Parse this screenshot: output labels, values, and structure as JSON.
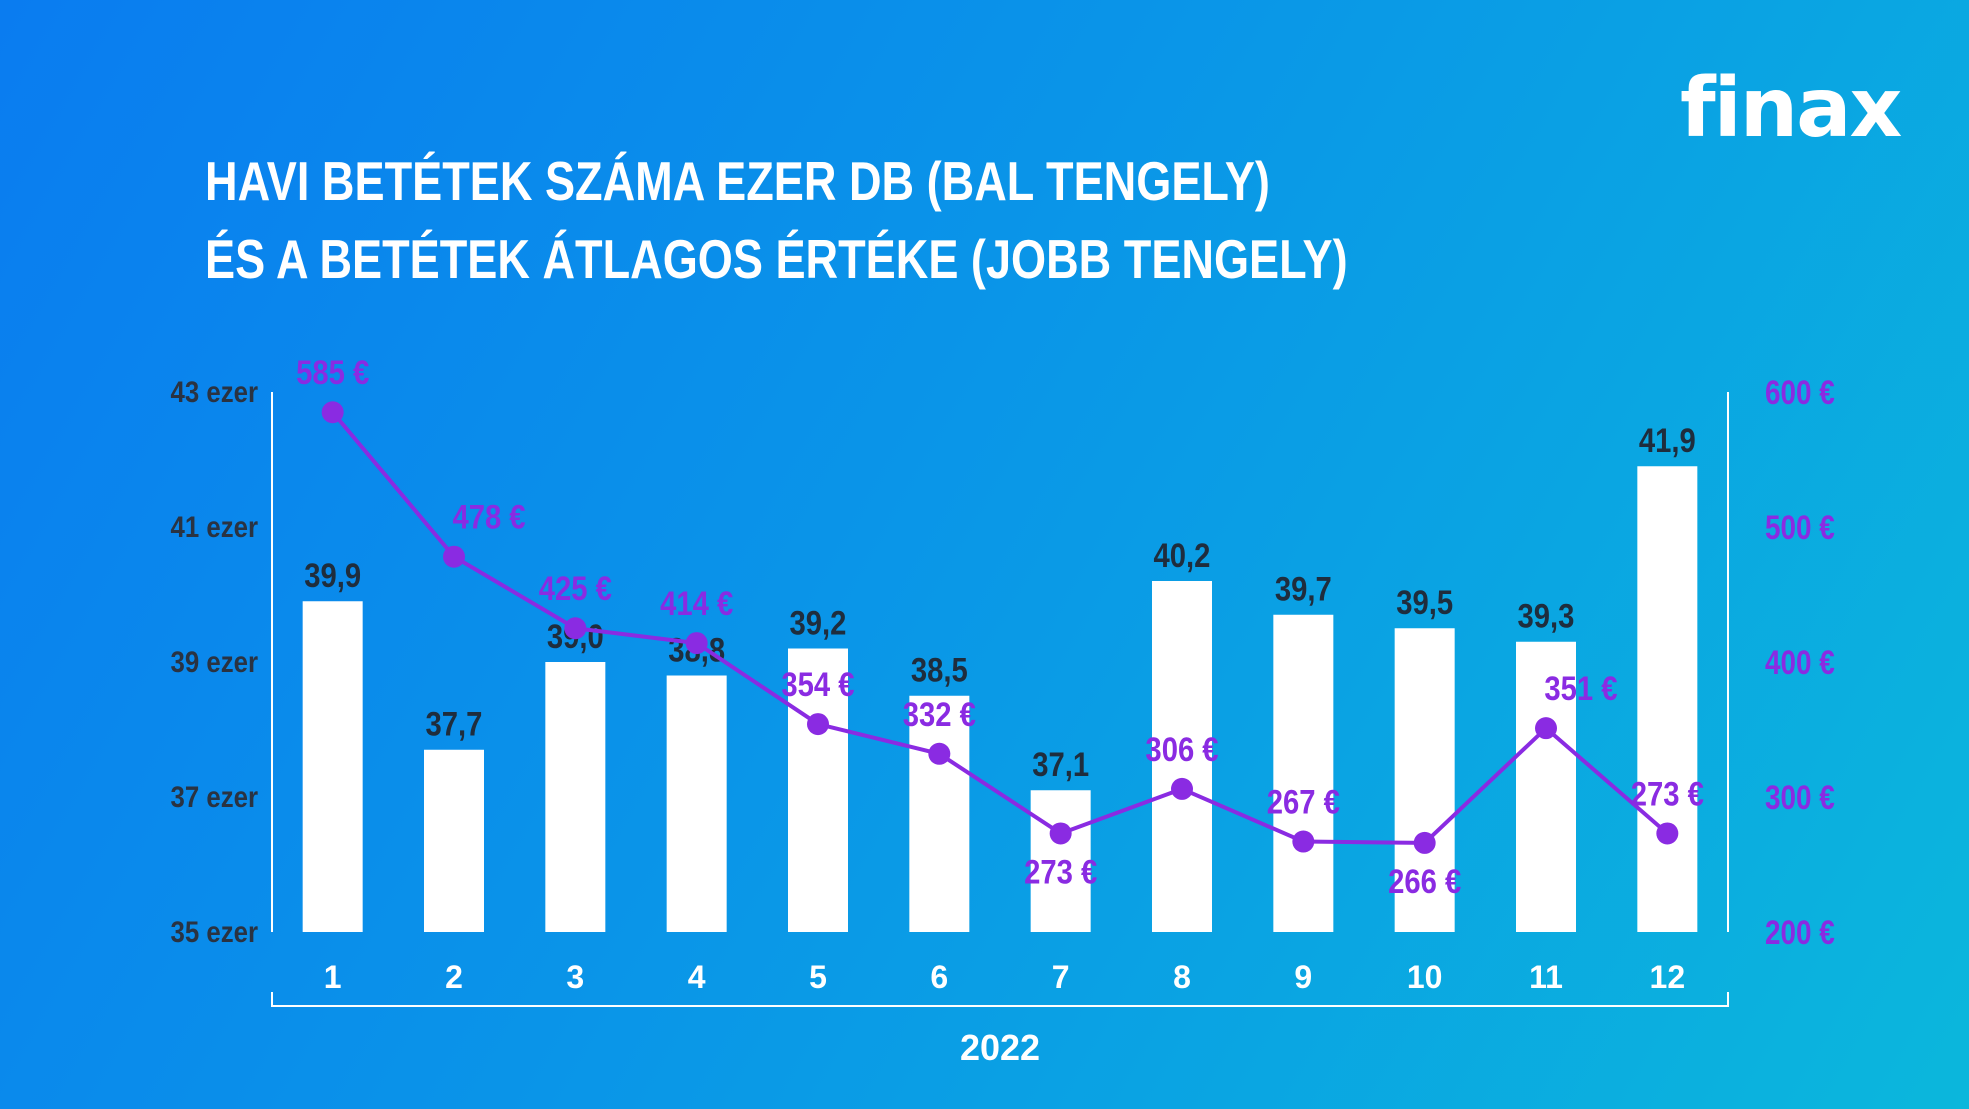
{
  "logo": "finax",
  "title": {
    "line1": "HAVI BETÉTEK SZÁMA EZER DB (BAL TENGELY)",
    "line2": "ÉS A BETÉTEK ÁTLAGOS ÉRTÉKE (JOBB TENGELY)"
  },
  "colors": {
    "bar": "#ffffff",
    "line": "#8a2be2",
    "bar_label": "#1f2d3d",
    "text_dark": "#2a3342",
    "axis": "#ffffff"
  },
  "chart_data": {
    "type": "bar+line",
    "xlabel": "2022",
    "categories": [
      "1",
      "2",
      "3",
      "4",
      "5",
      "6",
      "7",
      "8",
      "9",
      "10",
      "11",
      "12"
    ],
    "bars": {
      "values": [
        39.9,
        37.7,
        39.0,
        38.8,
        39.2,
        38.5,
        37.1,
        40.2,
        39.7,
        39.5,
        39.3,
        41.9
      ],
      "labels": [
        "39,9",
        "37,7",
        "39,0",
        "38,8",
        "39,2",
        "38,5",
        "37,1",
        "40,2",
        "39,7",
        "39,5",
        "39,3",
        "41,9"
      ],
      "ylim": [
        35,
        43
      ],
      "ticks": [
        35,
        37,
        39,
        41,
        43
      ],
      "tick_labels": [
        "35 ezer",
        "37 ezer",
        "39 ezer",
        "41 ezer",
        "43 ezer"
      ]
    },
    "line": {
      "values": [
        585,
        478,
        425,
        414,
        354,
        332,
        273,
        306,
        267,
        266,
        351,
        273
      ],
      "labels": [
        "585 €",
        "478 €",
        "425 €",
        "414 €",
        "354 €",
        "332 €",
        "273 €",
        "306 €",
        "267 €",
        "266 €",
        "351 €",
        "273 €"
      ],
      "ylim": [
        200,
        600
      ],
      "ticks": [
        200,
        300,
        400,
        500,
        600
      ],
      "tick_labels": [
        "200 €",
        "300 €",
        "400 €",
        "500 €",
        "600 €"
      ]
    },
    "grid": false
  }
}
